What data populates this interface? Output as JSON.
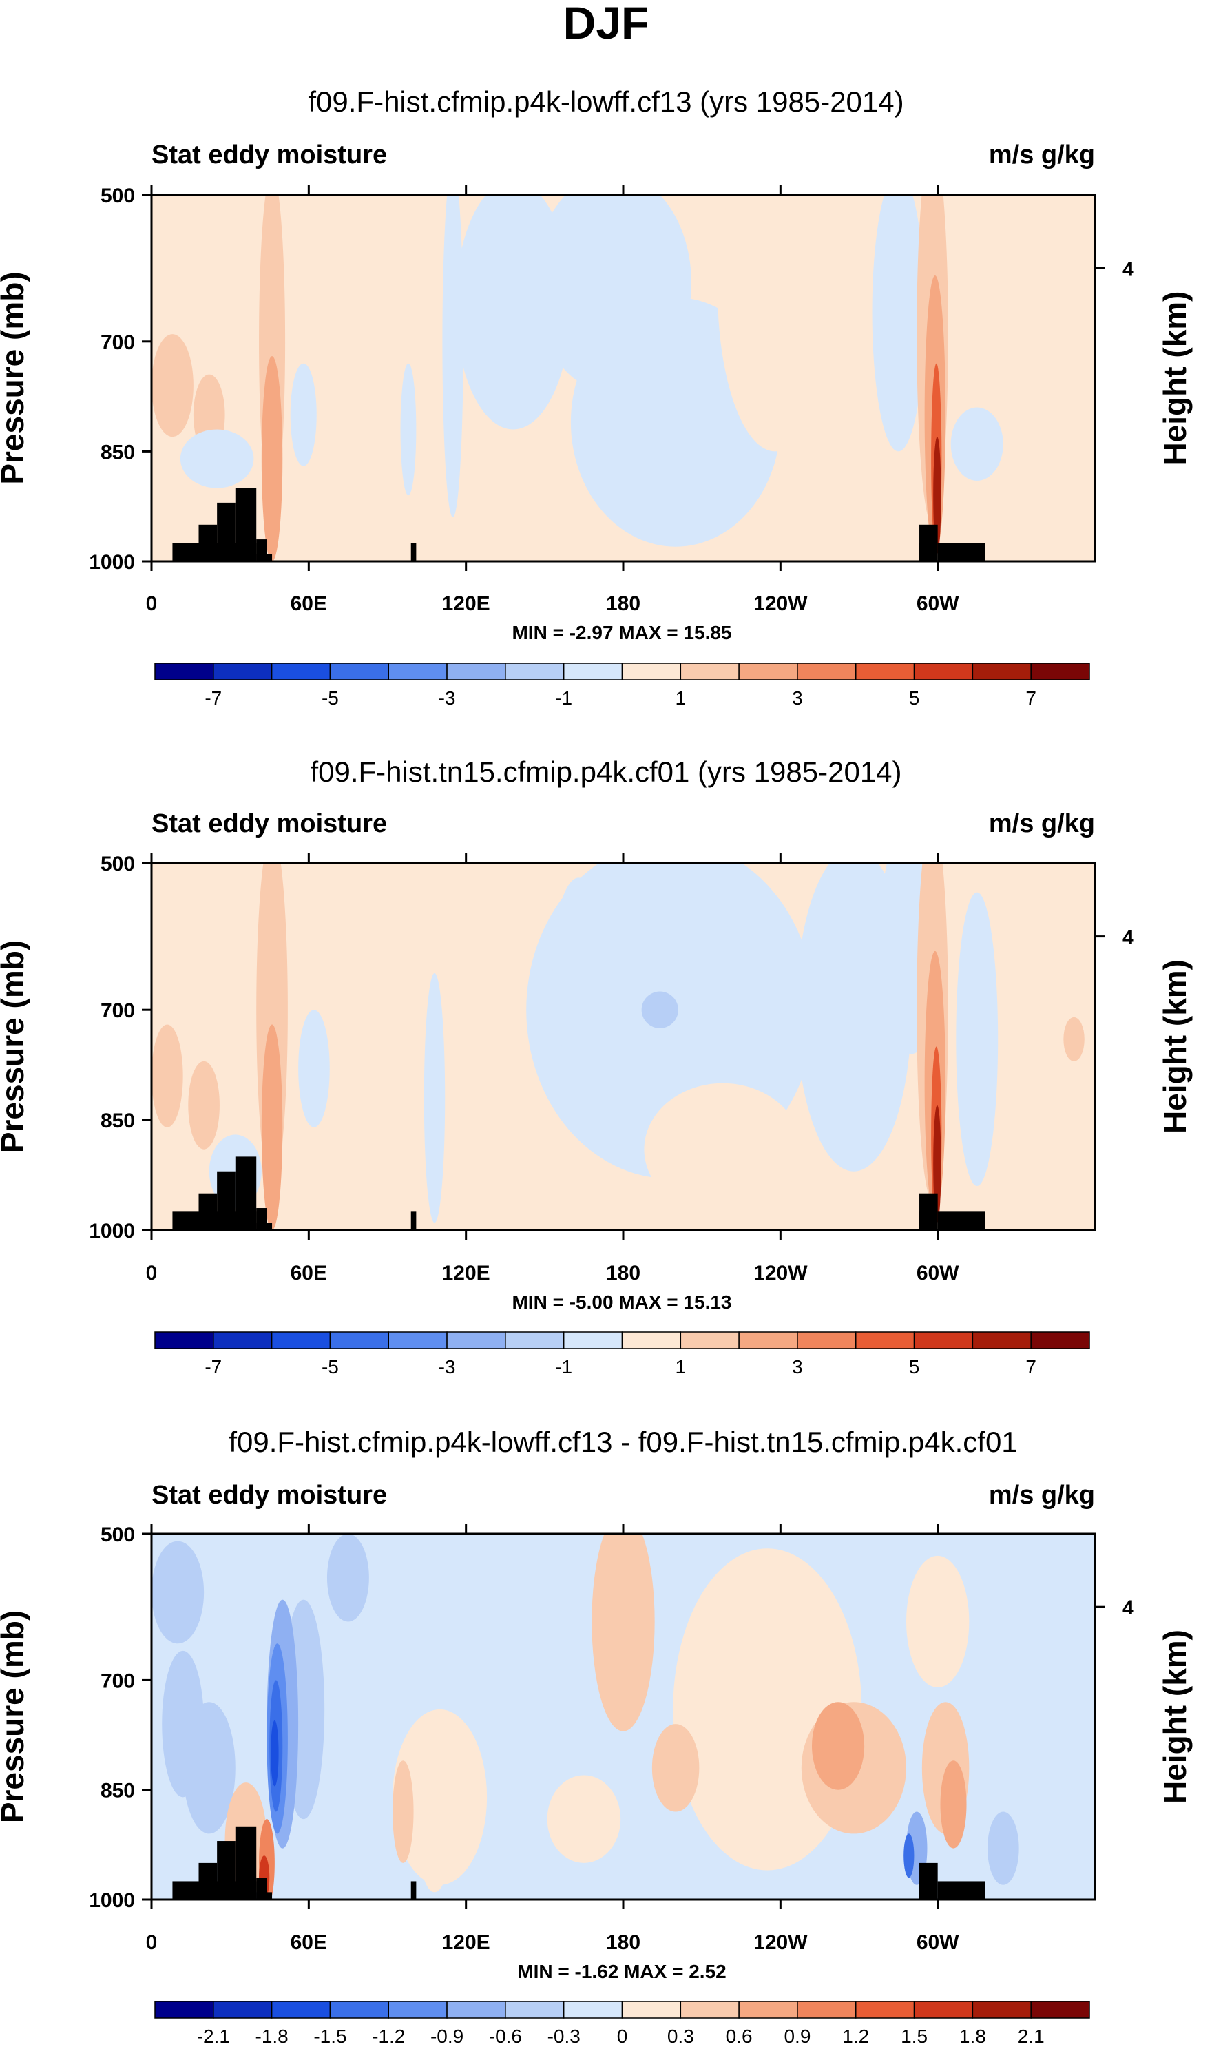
{
  "main_title": "DJF",
  "colors": {
    "diverging": [
      "#00008b",
      "#0d2fbf",
      "#1a4fe0",
      "#3a6fe8",
      "#5f8ef0",
      "#8fb0f2",
      "#b7cff6",
      "#d6e7fb",
      "#fde8d5",
      "#f9cbae",
      "#f5a882",
      "#f0855c",
      "#e85d35",
      "#d0381c",
      "#a51d0a",
      "#7a0606"
    ],
    "land": "#000000"
  },
  "chart_data": [
    {
      "type": "heatmap",
      "title": "f09.F-hist.cfmip.p4k-lowff.cf13 (yrs 1985-2014)",
      "left_label": "Stat eddy moisture",
      "right_label": "m/s g/kg",
      "ylabel": "Pressure (mb)",
      "ylabel_right": "Height (km)",
      "yticks": [
        "500",
        "700",
        "850",
        "1000"
      ],
      "yticks_right": [
        "4"
      ],
      "xticks": [
        "0",
        "60E",
        "120E",
        "180",
        "120W",
        "60W"
      ],
      "stats": "MIN = -2.97  MAX = 15.85",
      "colorbar_labels": [
        "-7",
        "-5",
        "-3",
        "-1",
        "1",
        "3",
        "5",
        "7"
      ]
    },
    {
      "type": "heatmap",
      "title": "f09.F-hist.tn15.cfmip.p4k.cf01 (yrs 1985-2014)",
      "left_label": "Stat eddy moisture",
      "right_label": "m/s g/kg",
      "ylabel": "Pressure (mb)",
      "ylabel_right": "Height (km)",
      "yticks": [
        "500",
        "700",
        "850",
        "1000"
      ],
      "yticks_right": [
        "4"
      ],
      "xticks": [
        "0",
        "60E",
        "120E",
        "180",
        "120W",
        "60W"
      ],
      "stats": "MIN = -5.00  MAX = 15.13",
      "colorbar_labels": [
        "-7",
        "-5",
        "-3",
        "-1",
        "1",
        "3",
        "5",
        "7"
      ]
    },
    {
      "type": "heatmap",
      "title": "f09.F-hist.cfmip.p4k-lowff.cf13 - f09.F-hist.tn15.cfmip.p4k.cf01",
      "left_label": "Stat eddy moisture",
      "right_label": "m/s g/kg",
      "ylabel": "Pressure (mb)",
      "ylabel_right": "Height (km)",
      "yticks": [
        "500",
        "700",
        "850",
        "1000"
      ],
      "yticks_right": [
        "4"
      ],
      "xticks": [
        "0",
        "60E",
        "120E",
        "180",
        "120W",
        "60W"
      ],
      "stats": "MIN = -1.62  MAX = 2.52",
      "colorbar_labels": [
        "-2.1",
        "-1.8",
        "-1.5",
        "-1.2",
        "-0.9",
        "-0.6",
        "-0.3",
        "0",
        "0.3",
        "0.6",
        "0.9",
        "1.2",
        "1.5",
        "1.8",
        "2.1"
      ]
    }
  ]
}
